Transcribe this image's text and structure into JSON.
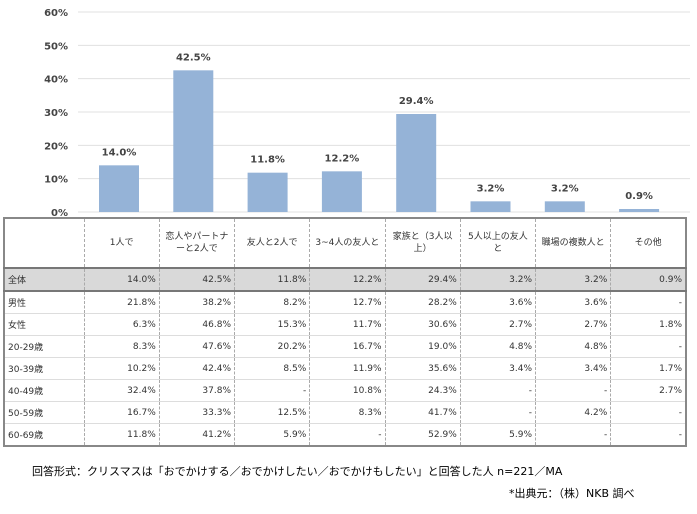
{
  "chart_data": {
    "type": "bar",
    "categories": [
      "1人で",
      "恋人やパートナーと2人で",
      "友人と2人で",
      "3~4人の友人と",
      "家族と（3人以上）",
      "5人以上の友人と",
      "職場の複数人と",
      "その他"
    ],
    "values": [
      14.0,
      42.5,
      11.8,
      12.2,
      29.4,
      3.2,
      3.2,
      0.9
    ],
    "data_labels": [
      "14.0%",
      "42.5%",
      "11.8%",
      "12.2%",
      "29.4%",
      "3.2%",
      "3.2%",
      "0.9%"
    ],
    "yticks": [
      "0%",
      "10%",
      "20%",
      "30%",
      "40%",
      "50%",
      "60%"
    ],
    "ylim": [
      0,
      60
    ],
    "grid": true,
    "bar_color": "#95b3d7"
  },
  "table": {
    "headers": [
      "1人で",
      "恋人やパートナーと2人で",
      "友人と2人で",
      "3~4人の友人と",
      "家族と（3人以上）",
      "5人以上の友人と",
      "職場の複数人と",
      "その他"
    ],
    "rows": [
      {
        "label": "全体",
        "cells": [
          "14.0%",
          "42.5%",
          "11.8%",
          "12.2%",
          "29.4%",
          "3.2%",
          "3.2%",
          "0.9%"
        ]
      },
      {
        "label": "男性",
        "cells": [
          "21.8%",
          "38.2%",
          "8.2%",
          "12.7%",
          "28.2%",
          "3.6%",
          "3.6%",
          "-"
        ]
      },
      {
        "label": "女性",
        "cells": [
          "6.3%",
          "46.8%",
          "15.3%",
          "11.7%",
          "30.6%",
          "2.7%",
          "2.7%",
          "1.8%"
        ]
      },
      {
        "label": "20-29歳",
        "cells": [
          "8.3%",
          "47.6%",
          "20.2%",
          "16.7%",
          "19.0%",
          "4.8%",
          "4.8%",
          "-"
        ]
      },
      {
        "label": "30-39歳",
        "cells": [
          "10.2%",
          "42.4%",
          "8.5%",
          "11.9%",
          "35.6%",
          "3.4%",
          "3.4%",
          "1.7%"
        ]
      },
      {
        "label": "40-49歳",
        "cells": [
          "32.4%",
          "37.8%",
          "-",
          "10.8%",
          "24.3%",
          "-",
          "-",
          "2.7%"
        ]
      },
      {
        "label": "50-59歳",
        "cells": [
          "16.7%",
          "33.3%",
          "12.5%",
          "8.3%",
          "41.7%",
          "-",
          "4.2%",
          "-"
        ]
      },
      {
        "label": "60-69歳",
        "cells": [
          "11.8%",
          "41.2%",
          "5.9%",
          "-",
          "52.9%",
          "5.9%",
          "-",
          "-"
        ]
      }
    ]
  },
  "footer": {
    "note": "回答形式：クリスマスは「おでかけする／おでかけしたい／おでかけもしたい」と回答した人 n=221／MA",
    "source": "*出典元：（株）NKB 調べ"
  }
}
